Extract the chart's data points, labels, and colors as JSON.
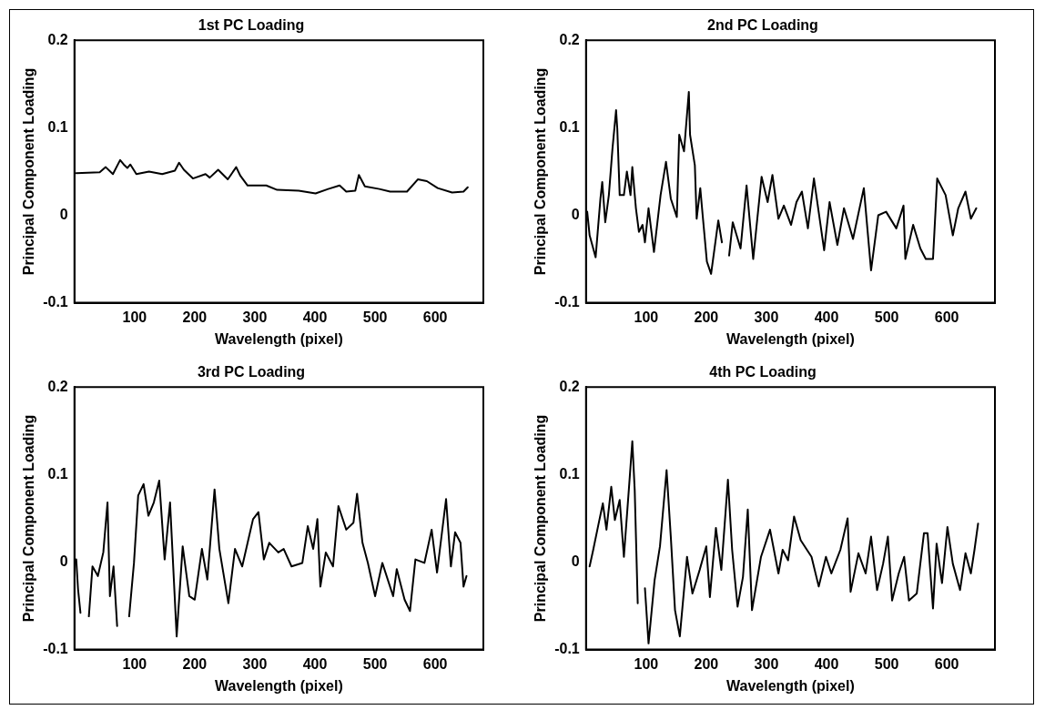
{
  "chart_data": [
    {
      "type": "line",
      "title": "1st PC Loading",
      "xlabel": "Wavelength (pixel)",
      "ylabel": "Principal Component Loading",
      "color": "#000000",
      "xlim": [
        0,
        680
      ],
      "ylim": [
        -0.1,
        0.2
      ],
      "xticks": [
        100,
        200,
        300,
        400,
        500,
        600
      ],
      "yticks": [
        -0.1,
        0,
        0.1,
        0.2
      ],
      "grid": false,
      "x": [
        3,
        42,
        52,
        64,
        76,
        82,
        88,
        93,
        103,
        124,
        146,
        167,
        174,
        182,
        197,
        218,
        225,
        239,
        255,
        269,
        276,
        288,
        319,
        337,
        373,
        401,
        422,
        441,
        452,
        467,
        473,
        483,
        507,
        525,
        553,
        571,
        586,
        604,
        628,
        647,
        654
      ],
      "values": [
        0.048,
        0.049,
        0.055,
        0.047,
        0.063,
        0.058,
        0.054,
        0.058,
        0.047,
        0.05,
        0.047,
        0.051,
        0.06,
        0.052,
        0.042,
        0.047,
        0.043,
        0.052,
        0.041,
        0.055,
        0.045,
        0.034,
        0.034,
        0.029,
        0.028,
        0.025,
        0.03,
        0.034,
        0.027,
        0.028,
        0.046,
        0.033,
        0.03,
        0.027,
        0.027,
        0.041,
        0.039,
        0.031,
        0.026,
        0.027,
        0.032
      ]
    },
    {
      "type": "line",
      "title": "2nd PC Loading",
      "xlabel": "Wavelength (pixel)",
      "ylabel": "Principal Component Loading",
      "color": "#000000",
      "xlim": [
        0,
        680
      ],
      "ylim": [
        -0.1,
        0.2
      ],
      "xticks": [
        100,
        200,
        300,
        400,
        500,
        600
      ],
      "yticks": [
        -0.1,
        0,
        0.1,
        0.2
      ],
      "grid": false,
      "x": [
        2,
        6,
        16,
        24,
        27,
        32,
        38,
        44,
        50,
        52,
        56,
        63,
        68,
        74,
        77,
        83,
        88,
        94,
        98,
        104,
        113,
        124,
        133,
        141,
        151,
        155,
        163,
        171,
        173,
        181,
        184,
        190,
        194,
        201,
        208,
        220,
        226,
        231,
        238,
        244,
        257,
        267,
        278,
        292,
        302,
        310,
        320,
        329,
        341,
        350,
        359,
        369,
        379,
        396,
        405,
        418,
        429,
        444,
        462,
        474,
        486,
        499,
        516,
        528,
        531,
        544,
        556,
        565,
        577,
        584,
        598,
        610,
        619,
        631,
        640,
        649
      ],
      "values": [
        0.004,
        -0.023,
        -0.048,
        0.019,
        0.038,
        -0.008,
        0.023,
        0.076,
        0.12,
        0.099,
        0.023,
        0.023,
        0.05,
        0.023,
        0.055,
        0.008,
        -0.019,
        -0.011,
        -0.031,
        0.008,
        -0.042,
        0.023,
        0.061,
        0.019,
        -0.002,
        0.092,
        0.073,
        0.141,
        0.092,
        0.057,
        -0.004,
        0.031,
        0,
        -0.053,
        -0.067,
        -0.006,
        -0.031,
        null,
        -0.046,
        -0.008,
        -0.038,
        0.034,
        -0.05,
        0.044,
        0.015,
        0.046,
        -0.004,
        0.011,
        -0.011,
        0.015,
        0.027,
        -0.015,
        0.042,
        -0.04,
        0.015,
        -0.034,
        0.008,
        -0.027,
        0.031,
        -0.063,
        0,
        0.004,
        -0.015,
        0.011,
        -0.05,
        -0.011,
        -0.038,
        -0.05,
        -0.05,
        0.042,
        0.023,
        -0.023,
        0.008,
        0.027,
        -0.004,
        0.008
      ]
    },
    {
      "type": "line",
      "title": "3rd PC Loading",
      "xlabel": "Wavelength (pixel)",
      "ylabel": "Principal Component Loading",
      "color": "#000000",
      "xlim": [
        0,
        680
      ],
      "ylim": [
        -0.1,
        0.2
      ],
      "xticks": [
        100,
        200,
        300,
        400,
        500,
        600
      ],
      "yticks": [
        -0.1,
        0,
        0.1,
        0.2
      ],
      "grid": false,
      "x": [
        3,
        6,
        10,
        18,
        24,
        30,
        39,
        48,
        55,
        59,
        65,
        71,
        76,
        87,
        91,
        99,
        106,
        115,
        123,
        132,
        141,
        150,
        159,
        170,
        180,
        191,
        200,
        212,
        221,
        233,
        241,
        256,
        267,
        279,
        288,
        297,
        306,
        315,
        324,
        339,
        348,
        361,
        379,
        388,
        397,
        404,
        409,
        418,
        430,
        439,
        452,
        464,
        470,
        479,
        488,
        500,
        512,
        530,
        536,
        549,
        558,
        567,
        582,
        594,
        603,
        618,
        626,
        633,
        642,
        647,
        652
      ],
      "values": [
        0.003,
        -0.031,
        -0.058,
        null,
        -0.062,
        -0.005,
        -0.016,
        0.011,
        0.068,
        -0.039,
        -0.005,
        -0.073,
        null,
        null,
        -0.062,
        -0.001,
        0.076,
        0.089,
        0.053,
        0.068,
        0.093,
        0.003,
        0.068,
        -0.085,
        0.018,
        -0.039,
        -0.043,
        0.015,
        -0.02,
        0.083,
        0.015,
        -0.047,
        0.015,
        -0.005,
        0.022,
        0.049,
        0.057,
        0.003,
        0.022,
        0.011,
        0.015,
        -0.005,
        -0.001,
        0.041,
        0.015,
        0.049,
        -0.028,
        0.011,
        -0.005,
        0.064,
        0.037,
        0.045,
        0.078,
        0.022,
        -0.001,
        -0.039,
        -0.001,
        -0.039,
        -0.008,
        -0.043,
        -0.056,
        0.003,
        -0.001,
        0.037,
        -0.012,
        0.072,
        -0.005,
        0.034,
        0.022,
        -0.028,
        -0.016
      ]
    },
    {
      "type": "line",
      "title": "4th PC Loading",
      "xlabel": "Wavelength (pixel)",
      "ylabel": "Principal Component Loading",
      "color": "#000000",
      "xlim": [
        0,
        680
      ],
      "ylim": [
        -0.1,
        0.2
      ],
      "xticks": [
        100,
        200,
        300,
        400,
        500,
        600
      ],
      "yticks": [
        -0.1,
        0,
        0.1,
        0.2
      ],
      "grid": false,
      "x": [
        6,
        12,
        21,
        28,
        34,
        42,
        48,
        56,
        63,
        72,
        77,
        81,
        86,
        90,
        98,
        104,
        114,
        123,
        134,
        141,
        148,
        156,
        168,
        177,
        189,
        200,
        206,
        216,
        225,
        236,
        243,
        252,
        261,
        269,
        276,
        291,
        306,
        320,
        327,
        336,
        346,
        357,
        375,
        387,
        399,
        408,
        423,
        435,
        440,
        453,
        465,
        474,
        484,
        494,
        502,
        509,
        520,
        529,
        537,
        550,
        562,
        568,
        577,
        583,
        592,
        601,
        610,
        622,
        631,
        640,
        646,
        652
      ],
      "values": [
        -0.005,
        0.014,
        0.044,
        0.067,
        0.037,
        0.086,
        0.048,
        0.071,
        0.006,
        0.09,
        0.138,
        0.082,
        -0.047,
        null,
        -0.03,
        -0.093,
        -0.021,
        0.018,
        0.105,
        0.029,
        -0.055,
        -0.085,
        0.006,
        -0.036,
        -0.009,
        0.018,
        -0.04,
        0.039,
        -0.009,
        0.094,
        0.014,
        -0.051,
        -0.017,
        0.06,
        -0.055,
        0.006,
        0.037,
        -0.013,
        0.014,
        0.002,
        0.052,
        0.025,
        0.006,
        -0.028,
        0.006,
        -0.013,
        0.014,
        0.05,
        -0.034,
        0.01,
        -0.013,
        0.029,
        -0.032,
        -0.002,
        0.029,
        -0.044,
        -0.013,
        0.006,
        -0.044,
        -0.036,
        0.033,
        0.033,
        -0.053,
        0.021,
        -0.024,
        0.04,
        -0.002,
        -0.032,
        0.01,
        -0.013,
        0.014,
        0.044
      ]
    }
  ]
}
